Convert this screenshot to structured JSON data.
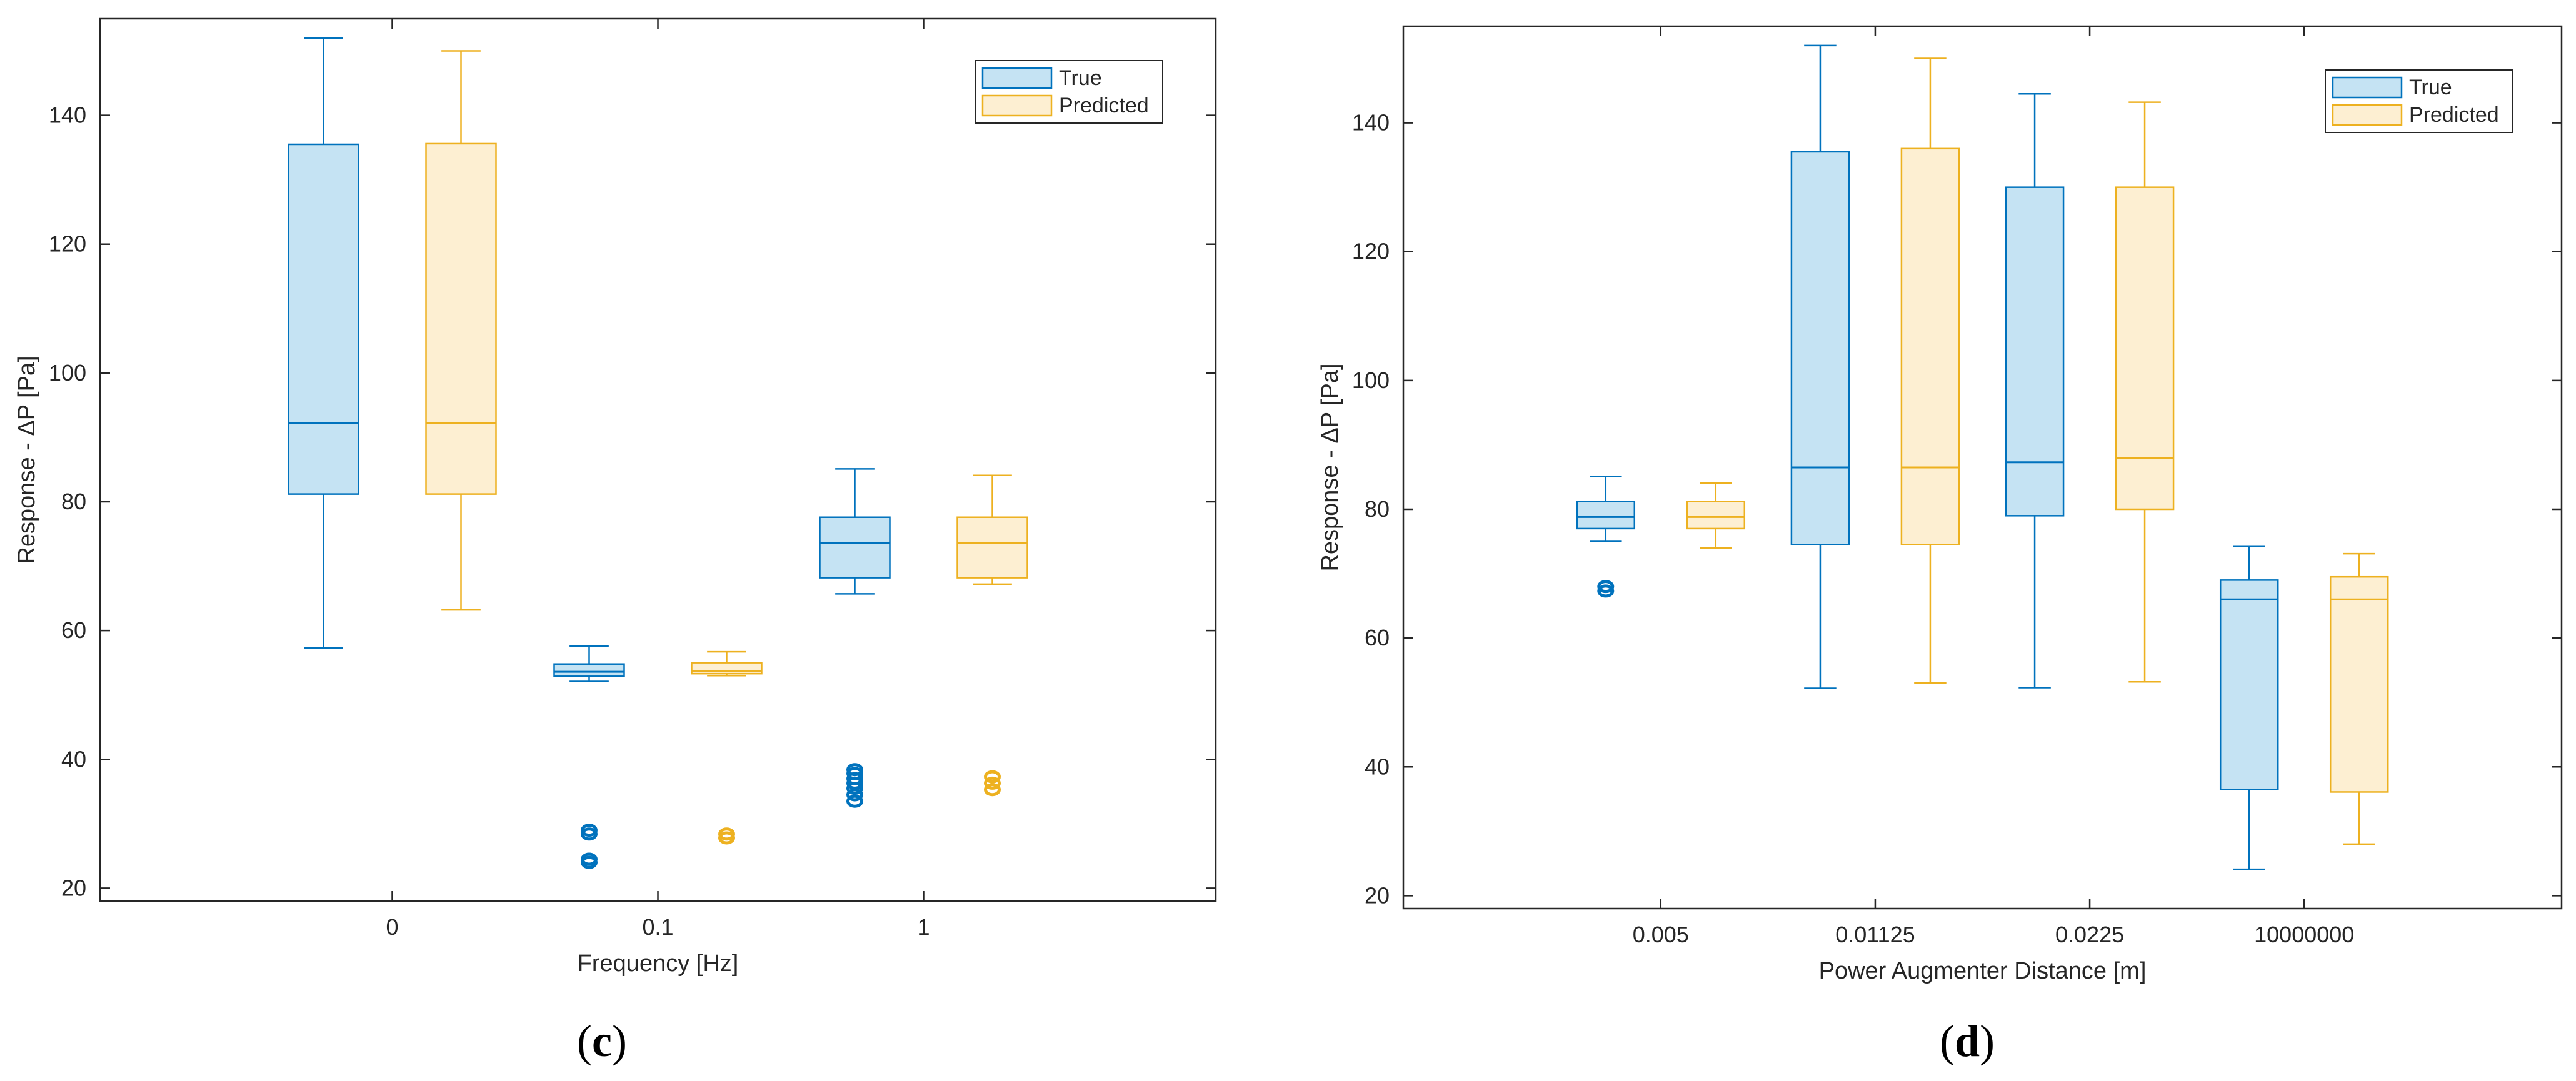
{
  "chart_data": [
    {
      "type": "boxplot",
      "panel_label": "c",
      "xlabel": "Frequency [Hz]",
      "ylabel": "Response - ΔP [Pa]",
      "ylim": [
        18,
        155
      ],
      "yticks": [
        20,
        40,
        60,
        80,
        100,
        120,
        140
      ],
      "categories": [
        "0",
        "0.1",
        "1"
      ],
      "legend": {
        "position": "top-right",
        "entries": [
          "True",
          "Predicted"
        ]
      },
      "series": [
        {
          "name": "True",
          "color": "#0072BD",
          "fill": "#C5E3F3",
          "boxes": [
            {
              "category": "0",
              "whisker_low": 57.3,
              "q1": 81.2,
              "median": 92.2,
              "q3": 135.5,
              "whisker_high": 152,
              "outliers": []
            },
            {
              "category": "0.1",
              "whisker_low": 52.1,
              "q1": 52.9,
              "median": 53.6,
              "q3": 54.8,
              "whisker_high": 57.6,
              "outliers": [
                24,
                24.5,
                28.4,
                29
              ]
            },
            {
              "category": "1",
              "whisker_low": 65.7,
              "q1": 68.2,
              "median": 73.6,
              "q3": 77.6,
              "whisker_high": 85.1,
              "outliers": [
                33.5,
                34.5,
                35.5,
                36.3,
                37,
                37.8,
                38.4
              ]
            }
          ]
        },
        {
          "name": "Predicted",
          "color": "#EDB120",
          "fill": "#FDEFD2",
          "boxes": [
            {
              "category": "0",
              "whisker_low": 63.2,
              "q1": 81.2,
              "median": 92.2,
              "q3": 135.6,
              "whisker_high": 150,
              "outliers": []
            },
            {
              "category": "0.1",
              "whisker_low": 53,
              "q1": 53.3,
              "median": 53.7,
              "q3": 55,
              "whisker_high": 56.7,
              "outliers": [
                27.8,
                28.4
              ]
            },
            {
              "category": "1",
              "whisker_low": 67.2,
              "q1": 68.2,
              "median": 73.6,
              "q3": 77.6,
              "whisker_high": 84.1,
              "outliers": [
                35.3,
                36.3,
                37.3
              ]
            }
          ]
        }
      ]
    },
    {
      "type": "boxplot",
      "panel_label": "d",
      "xlabel": "Power Augmenter Distance [m]",
      "ylabel": "Response - ΔP [Pa]",
      "ylim": [
        18,
        155
      ],
      "yticks": [
        20,
        40,
        60,
        80,
        100,
        120,
        140
      ],
      "categories": [
        "0.005",
        "0.01125",
        "0.0225",
        "10000000"
      ],
      "legend": {
        "position": "top-right",
        "entries": [
          "True",
          "Predicted"
        ]
      },
      "series": [
        {
          "name": "True",
          "color": "#0072BD",
          "fill": "#C5E3F3",
          "boxes": [
            {
              "category": "0.005",
              "whisker_low": 75,
              "q1": 77,
              "median": 78.8,
              "q3": 81.2,
              "whisker_high": 85.1,
              "outliers": [
                67.3,
                68
              ]
            },
            {
              "category": "0.01125",
              "whisker_low": 52.2,
              "q1": 74.5,
              "median": 86.5,
              "q3": 135.5,
              "whisker_high": 152,
              "outliers": []
            },
            {
              "category": "0.0225",
              "whisker_low": 52.3,
              "q1": 79,
              "median": 87.3,
              "q3": 130,
              "whisker_high": 144.5,
              "outliers": []
            },
            {
              "category": "10000000",
              "whisker_low": 24.1,
              "q1": 36.5,
              "median": 66,
              "q3": 69,
              "whisker_high": 74.2,
              "outliers": []
            }
          ]
        },
        {
          "name": "Predicted",
          "color": "#EDB120",
          "fill": "#FDEFD2",
          "boxes": [
            {
              "category": "0.005",
              "whisker_low": 74,
              "q1": 77,
              "median": 78.8,
              "q3": 81.2,
              "whisker_high": 84.1,
              "outliers": []
            },
            {
              "category": "0.01125",
              "whisker_low": 53,
              "q1": 74.5,
              "median": 86.5,
              "q3": 136,
              "whisker_high": 150,
              "outliers": []
            },
            {
              "category": "0.0225",
              "whisker_low": 53.2,
              "q1": 80,
              "median": 88,
              "q3": 130,
              "whisker_high": 143.2,
              "outliers": []
            },
            {
              "category": "10000000",
              "whisker_low": 28,
              "q1": 36.1,
              "median": 66,
              "q3": 69.5,
              "whisker_high": 73.1,
              "outliers": []
            }
          ]
        }
      ]
    }
  ]
}
